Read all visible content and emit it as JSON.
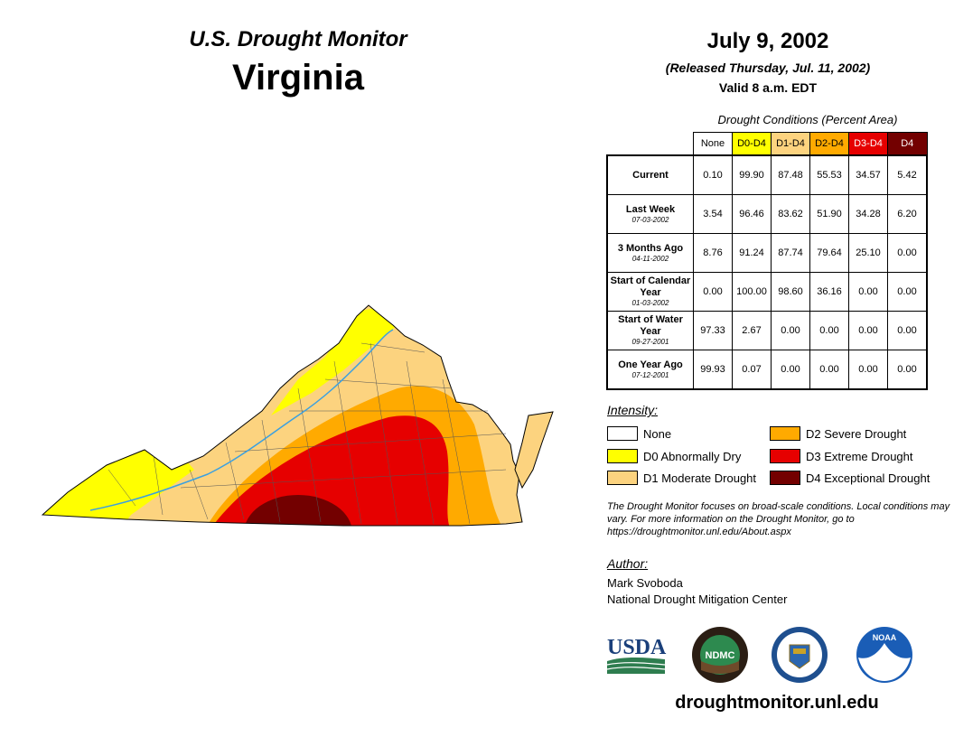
{
  "header": {
    "subtitle": "U.S. Drought Monitor",
    "region": "Virginia",
    "date": "July 9, 2002",
    "released": "(Released Thursday, Jul. 11, 2002)",
    "valid": "Valid 8 a.m. EDT"
  },
  "table": {
    "caption": "Drought Conditions (Percent Area)",
    "columns": [
      {
        "label": "None",
        "color": "#ffffff",
        "text_color": "#000000"
      },
      {
        "label": "D0-D4",
        "color": "#ffff00",
        "text_color": "#000000"
      },
      {
        "label": "D1-D4",
        "color": "#fcd37f",
        "text_color": "#000000"
      },
      {
        "label": "D2-D4",
        "color": "#ffaa00",
        "text_color": "#000000"
      },
      {
        "label": "D3-D4",
        "color": "#e60000",
        "text_color": "#ffffff"
      },
      {
        "label": "D4",
        "color": "#730000",
        "text_color": "#ffffff"
      }
    ],
    "rows": [
      {
        "label": "Current",
        "date": "",
        "values": [
          "0.10",
          "99.90",
          "87.48",
          "55.53",
          "34.57",
          "5.42"
        ]
      },
      {
        "label": "Last Week",
        "date": "07-03-2002",
        "values": [
          "3.54",
          "96.46",
          "83.62",
          "51.90",
          "34.28",
          "6.20"
        ]
      },
      {
        "label": "3 Months Ago",
        "date": "04-11-2002",
        "values": [
          "8.76",
          "91.24",
          "87.74",
          "79.64",
          "25.10",
          "0.00"
        ]
      },
      {
        "label": "Start of Calendar Year",
        "date": "01-03-2002",
        "values": [
          "0.00",
          "100.00",
          "98.60",
          "36.16",
          "0.00",
          "0.00"
        ]
      },
      {
        "label": "Start of Water Year",
        "date": "09-27-2001",
        "values": [
          "97.33",
          "2.67",
          "0.00",
          "0.00",
          "0.00",
          "0.00"
        ]
      },
      {
        "label": "One Year Ago",
        "date": "07-12-2001",
        "values": [
          "99.93",
          "0.07",
          "0.00",
          "0.00",
          "0.00",
          "0.00"
        ]
      }
    ]
  },
  "legend": {
    "title": "Intensity:",
    "items": [
      {
        "label": "None",
        "color": "#ffffff"
      },
      {
        "label": "D0 Abnormally Dry",
        "color": "#ffff00"
      },
      {
        "label": "D1 Moderate Drought",
        "color": "#fcd37f"
      },
      {
        "label": "D2 Severe Drought",
        "color": "#ffaa00"
      },
      {
        "label": "D3 Extreme Drought",
        "color": "#e60000"
      },
      {
        "label": "D4 Exceptional Drought",
        "color": "#730000"
      }
    ]
  },
  "note": "The Drought Monitor focuses on broad-scale conditions. Local conditions may vary. For more information on the Drought Monitor, go to https://droughtmonitor.unl.edu/About.aspx",
  "author": {
    "title": "Author:",
    "name": "Mark Svoboda",
    "org": "National Drought Mitigation Center"
  },
  "logos": [
    {
      "name": "usda-logo",
      "text": "USDA"
    },
    {
      "name": "ndmc-logo",
      "text": "NDMC"
    },
    {
      "name": "doc-logo",
      "text": ""
    },
    {
      "name": "noaa-logo",
      "text": "NOAA"
    }
  ],
  "website": "droughtmonitor.unl.edu"
}
